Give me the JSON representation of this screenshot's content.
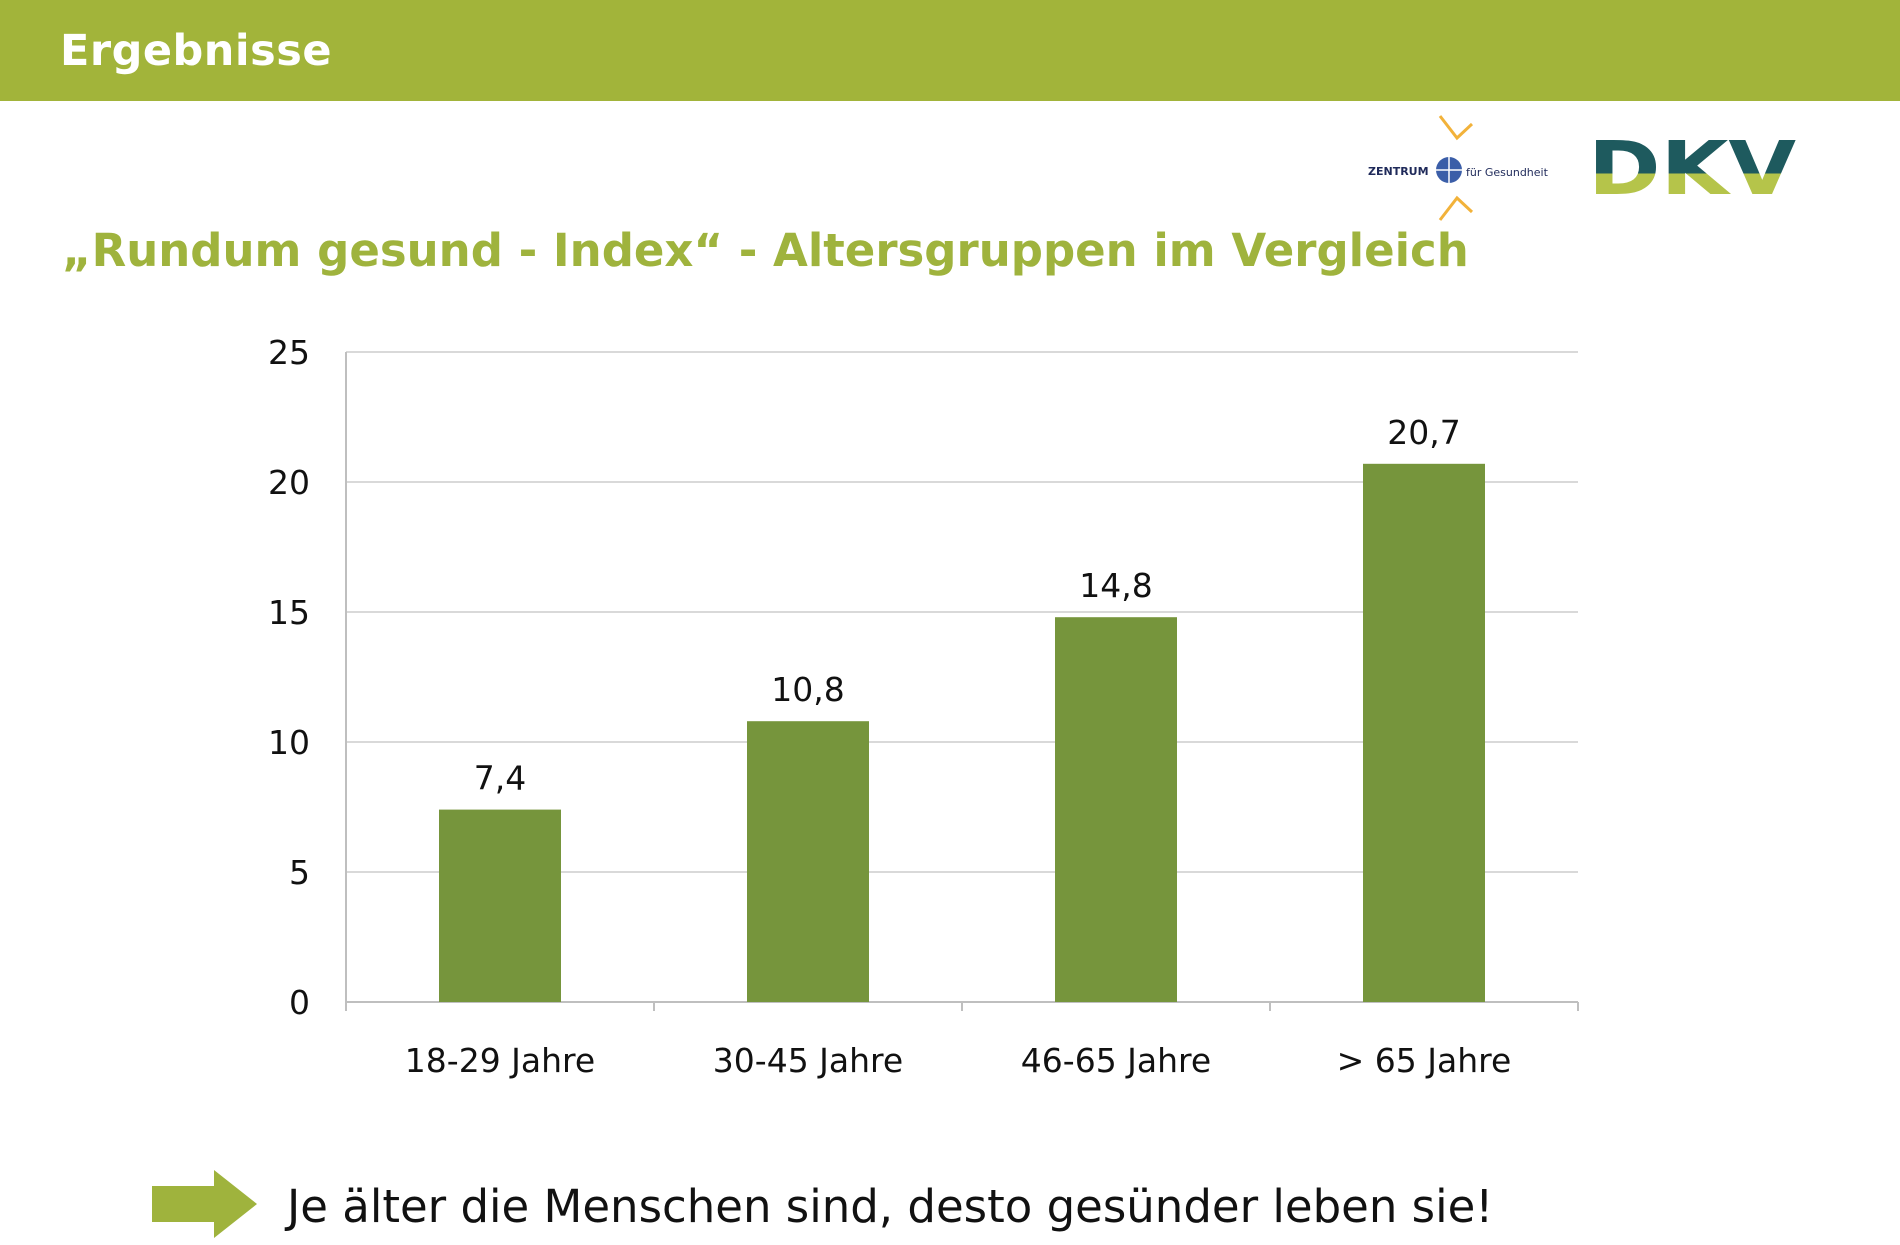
{
  "header": {
    "title": "Ergebnisse"
  },
  "logos": {
    "zentrum": {
      "word_left": "ZENTRUM",
      "word_right": "für Gesundheit"
    },
    "dkv": {
      "text": "DKV"
    }
  },
  "colors": {
    "header_bar": "#a2b43a",
    "heading_text": "#9fb33d",
    "bar_fill": "#76953c",
    "arrow": "#9fb33d",
    "dkv_dark": "#1e5a5e",
    "dkv_light": "#b5c44a"
  },
  "icons": {
    "arrow": "arrow-right-icon"
  },
  "chart_data": {
    "type": "bar",
    "title": "„Rundum gesund - Index“ - Altersgruppen im Vergleich",
    "categories": [
      "18-29 Jahre",
      "30-45 Jahre",
      "46-65 Jahre",
      "> 65 Jahre"
    ],
    "values": [
      7.4,
      10.8,
      14.8,
      20.7
    ],
    "value_labels": [
      "7,4",
      "10,8",
      "14,8",
      "20,7"
    ],
    "yticks": [
      0,
      5,
      10,
      15,
      20,
      25
    ],
    "ylim": [
      0,
      25
    ],
    "xlabel": "",
    "ylabel": "",
    "grid": true,
    "legend": "none"
  },
  "conclusion": {
    "text": "Je älter die Menschen sind, desto gesünder leben sie!"
  }
}
